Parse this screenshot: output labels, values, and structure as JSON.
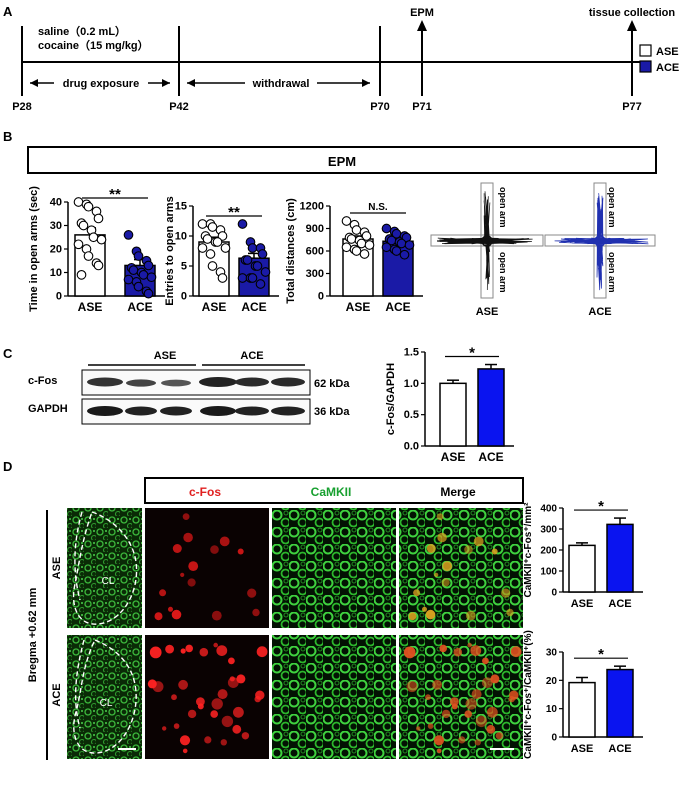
{
  "panels": {
    "A": "A",
    "B": "B",
    "C": "C",
    "D": "D"
  },
  "timeline": {
    "line1": "saline（0.2 mL）",
    "line2": "cocaine（15 mg/kg）",
    "drug_exposure": "drug exposure",
    "withdrawal": "withdrawal",
    "epm": "EPM",
    "tissue_collection": "tissue collection",
    "ticks": [
      "P28",
      "P42",
      "P70",
      "P71",
      "P77"
    ],
    "legend": [
      {
        "label": "ASE",
        "color": "#ffffff"
      },
      {
        "label": "ACE",
        "color": "#1a1aa6"
      }
    ]
  },
  "epm_banner": "EPM",
  "colors": {
    "ase_fill": "#ffffff",
    "ace_fill": "#1a1aa6",
    "ace_bar_c": "#0a14f0"
  },
  "chart_data": [
    {
      "id": "B1",
      "type": "bar",
      "ylabel": "Time in open arms (sec)",
      "categories": [
        "ASE",
        "ACE"
      ],
      "values": [
        26,
        13
      ],
      "errors": [
        3,
        2.5
      ],
      "ylim": [
        0,
        40
      ],
      "yticks": [
        "0",
        "10",
        "20",
        "30",
        "40"
      ],
      "significance": "**",
      "points": [
        [
          40,
          39,
          38,
          36,
          33,
          31,
          30,
          28,
          25,
          24,
          22,
          20,
          17,
          14,
          13,
          9
        ],
        [
          26,
          19,
          17,
          15,
          13,
          12,
          11,
          10,
          9,
          8,
          7,
          6,
          4,
          2,
          1
        ]
      ]
    },
    {
      "id": "B2",
      "type": "bar",
      "ylabel": "Entries to open arms",
      "categories": [
        "ASE",
        "ACE"
      ],
      "values": [
        9,
        6.3
      ],
      "errors": [
        0.8,
        0.8
      ],
      "ylim": [
        0,
        15
      ],
      "yticks": [
        "0",
        "5",
        "10",
        "15"
      ],
      "significance": "**",
      "points": [
        [
          12,
          12,
          11.5,
          11,
          10,
          10,
          9.5,
          9,
          9,
          8,
          8,
          7,
          5,
          4,
          3
        ],
        [
          12,
          9,
          8,
          8,
          7,
          6,
          6,
          5,
          5,
          4,
          3,
          3,
          3,
          2
        ]
      ]
    },
    {
      "id": "B3",
      "type": "bar",
      "ylabel": "Total distances (cm)",
      "categories": [
        "ASE",
        "ACE"
      ],
      "values": [
        760,
        730
      ],
      "errors": [
        40,
        30
      ],
      "ylim": [
        0,
        1200
      ],
      "yticks": [
        "0",
        "300",
        "600",
        "900",
        "1200"
      ],
      "significance": "N.S.",
      "points": [
        [
          1000,
          950,
          880,
          850,
          800,
          780,
          760,
          740,
          700,
          680,
          650,
          620,
          600,
          560
        ],
        [
          900,
          860,
          830,
          800,
          780,
          760,
          740,
          720,
          700,
          680,
          650,
          620,
          600,
          550
        ]
      ]
    },
    {
      "id": "C",
      "type": "bar",
      "ylabel": "c-Fos/GAPDH",
      "categories": [
        "ASE",
        "ACE"
      ],
      "values": [
        1.0,
        1.23
      ],
      "errors": [
        0.05,
        0.07
      ],
      "ylim": [
        0,
        1.5
      ],
      "yticks": [
        "0.0",
        "0.5",
        "1.0",
        "1.5"
      ],
      "significance": "*"
    },
    {
      "id": "D1",
      "type": "bar",
      "ylabel": "CaMKII⁺c-Fos⁺/mm²",
      "categories": [
        "ASE",
        "ACE"
      ],
      "values": [
        222,
        322
      ],
      "errors": [
        12,
        30
      ],
      "ylim": [
        0,
        400
      ],
      "yticks": [
        "0",
        "100",
        "200",
        "300",
        "400"
      ],
      "significance": "*"
    },
    {
      "id": "D2",
      "type": "bar",
      "ylabel": "CaMKII⁺c-Fos⁺/CaMKII⁺(%)",
      "categories": [
        "ASE",
        "ACE"
      ],
      "values": [
        19.2,
        23.8
      ],
      "errors": [
        1.8,
        1.2
      ],
      "ylim": [
        0,
        30
      ],
      "yticks": [
        "0",
        "10",
        "20",
        "30"
      ],
      "significance": "*"
    }
  ],
  "tracks": {
    "labels": [
      "ASE",
      "ACE"
    ],
    "open_arm": "open arm",
    "colors": [
      "#111111",
      "#2030b0"
    ]
  },
  "blot": {
    "groups": [
      "ASE",
      "ACE"
    ],
    "rows": [
      {
        "name": "c-Fos",
        "kda": "62 kDa"
      },
      {
        "name": "GAPDH",
        "kda": "36 kDa"
      }
    ]
  },
  "micro": {
    "headers": [
      "c-Fos",
      "CaMKII",
      "Merge"
    ],
    "header_colors": [
      "#e02020",
      "#18a030",
      "#000000"
    ],
    "rows": [
      "ASE",
      "ACE"
    ],
    "side_label": "Bregma +0.62 mm",
    "region": "CL"
  }
}
